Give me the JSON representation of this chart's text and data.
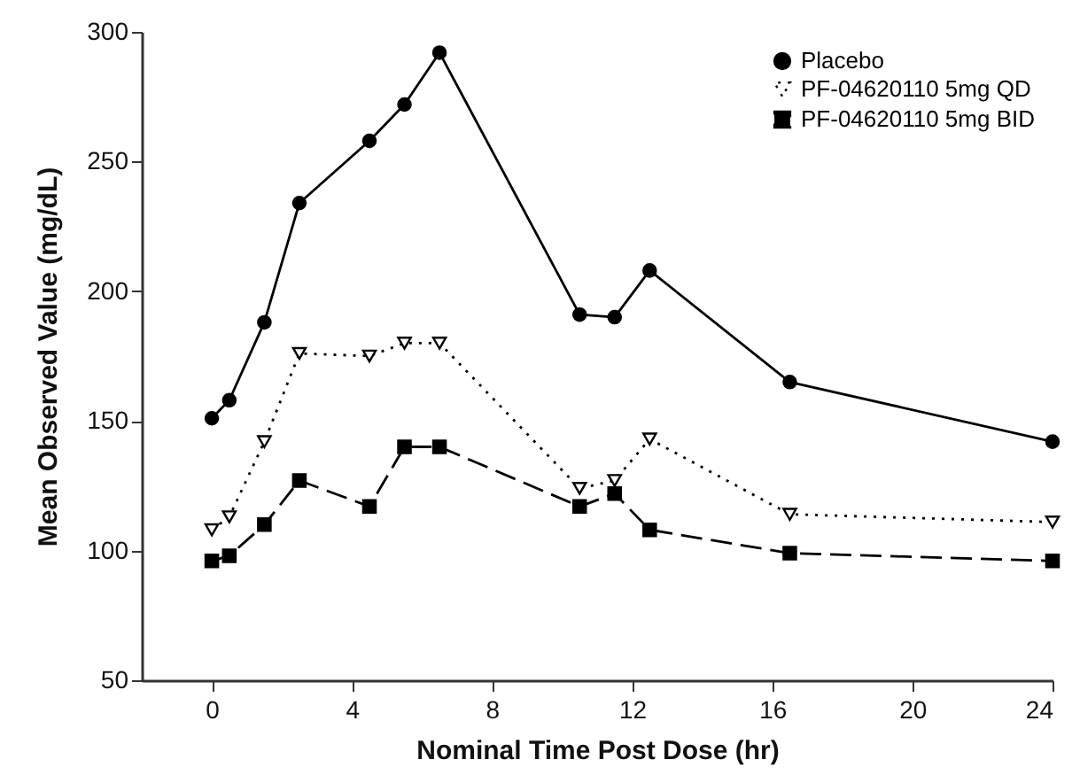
{
  "chart_data": {
    "type": "line",
    "xlabel": "Nominal Time Post Dose (hr)",
    "ylabel": "Mean Observed Value (mg/dL)",
    "x": [
      0,
      0.5,
      1.5,
      2.5,
      4.5,
      5.5,
      6.5,
      10.5,
      11.5,
      12.5,
      16.5,
      24
    ],
    "series": [
      {
        "name": "Placebo",
        "color": "#000000",
        "marker": "circle",
        "line_style": "solid",
        "values": [
          151,
          158,
          188,
          234,
          258,
          272,
          292,
          191,
          190,
          208,
          165,
          142
        ]
      },
      {
        "name": "PF-04620110 5mg QD",
        "color": "#000000",
        "marker": "triangle",
        "line_style": "dotted",
        "values": [
          108,
          113,
          142,
          176,
          175,
          180,
          180,
          124,
          127,
          143,
          114,
          111
        ]
      },
      {
        "name": "PF-04620110 5mg BID",
        "color": "#000000",
        "marker": "square",
        "line_style": "dashed",
        "values": [
          96,
          98,
          110,
          127,
          117,
          140,
          140,
          117,
          122,
          108,
          99,
          96
        ]
      }
    ],
    "xlim": [
      -2,
      24
    ],
    "xticks": [
      0,
      4,
      8,
      12,
      16,
      20,
      24
    ],
    "ylim": [
      50,
      300
    ],
    "yticks": [
      50,
      100,
      150,
      200,
      250,
      300
    ],
    "grid": false,
    "legend": "top right"
  }
}
